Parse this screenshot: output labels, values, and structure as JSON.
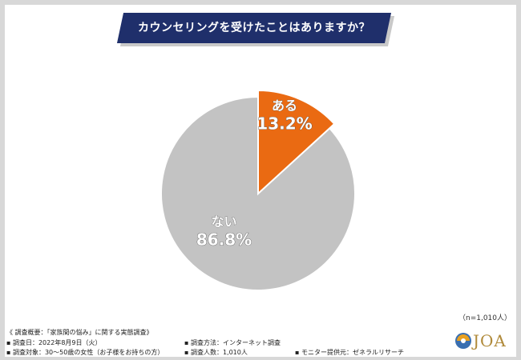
{
  "title": "カウンセリングを受けたことはありますか？",
  "sample_note": "（n=1,010人）",
  "chart_data": {
    "type": "pie",
    "slices": [
      {
        "label": "ある",
        "value": 13.2,
        "value_text": "13.2%",
        "color": "#ea6a12",
        "text_color": "#ffffff"
      },
      {
        "label": "ない",
        "value": 86.8,
        "value_text": "86.8%",
        "color": "#c3c3c3",
        "text_color": "#ffffff"
      }
    ]
  },
  "footer": {
    "line1": "《 調査概要：「家族間の悩み」に関する実態調査》",
    "line2a": "▪ 調査日：2022年8月9日（火）",
    "line2b": "▪ 調査方法：インターネット調査",
    "line3a": "▪ 調査対象：30〜50歳の女性（お子様をお持ちの方）",
    "line3b": "▪ 調査人数：1,010人",
    "line3c": "▪ モニター提供元：ゼネラルリサーチ"
  },
  "logo_text": "JOA"
}
